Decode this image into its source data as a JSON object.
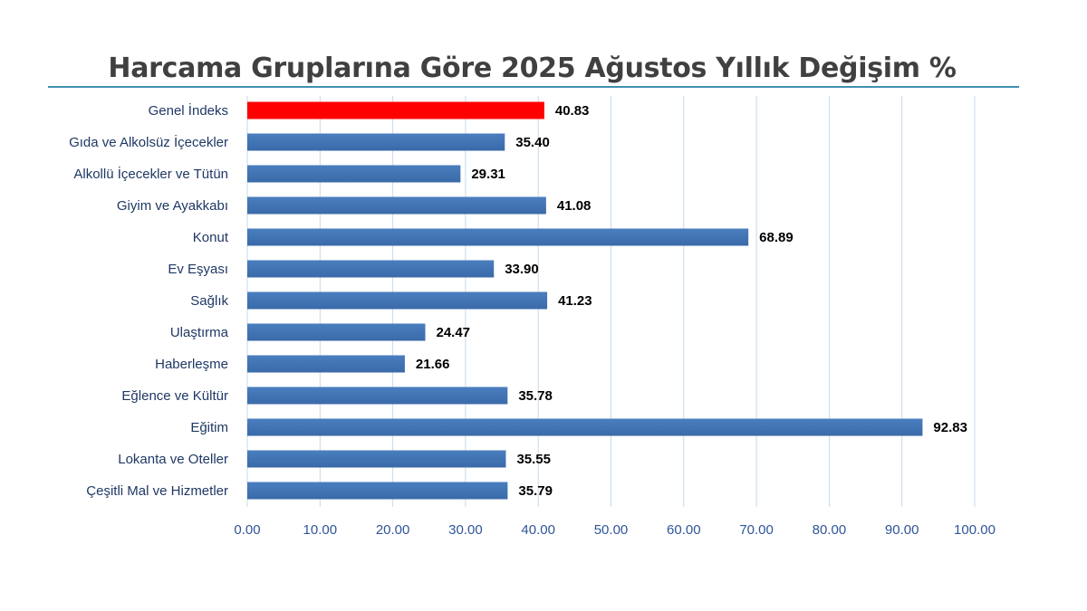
{
  "colors": {
    "bar": "#4a7ebf",
    "bar_dark": "#3a6aa8",
    "highlight_bar": "#ff0000",
    "highlight_label": "#ff0000",
    "grid": "#c8d8ea",
    "axis_text": "#2f5597",
    "category_text": "#1f3864",
    "title_rule": "#3e90b0"
  },
  "chart_data": {
    "type": "bar",
    "orientation": "horizontal",
    "title": "Harcama Gruplarına Göre 2025 Ağustos  Yıllık Değişim %",
    "xlabel": "",
    "ylabel": "",
    "categories": [
      "Genel İndeks",
      "Gıda ve Alkolsüz İçecekler",
      "Alkollü İçecekler ve Tütün",
      "Giyim ve Ayakkabı",
      "Konut",
      "Ev Eşyası",
      "Sağlık",
      "Ulaştırma",
      "Haberleşme",
      "Eğlence ve Kültür",
      "Eğitim",
      "Lokanta ve Oteller",
      "Çeşitli Mal ve Hizmetler"
    ],
    "values": [
      40.83,
      35.4,
      29.31,
      41.08,
      68.89,
      33.9,
      41.23,
      24.47,
      21.66,
      35.78,
      92.83,
      35.55,
      35.79
    ],
    "value_labels": [
      "40.83",
      "35.40",
      "29.31",
      "41.08",
      "68.89",
      "33.90",
      "41.23",
      "24.47",
      "21.66",
      "35.78",
      "92.83",
      "35.55",
      "35.79"
    ],
    "highlight_index": 0,
    "xlim": [
      0,
      100
    ],
    "x_ticks": [
      "0.00",
      "10.00",
      "20.00",
      "30.00",
      "40.00",
      "50.00",
      "60.00",
      "70.00",
      "80.00",
      "90.00",
      "100.00"
    ],
    "grid": true,
    "legend": "none"
  }
}
